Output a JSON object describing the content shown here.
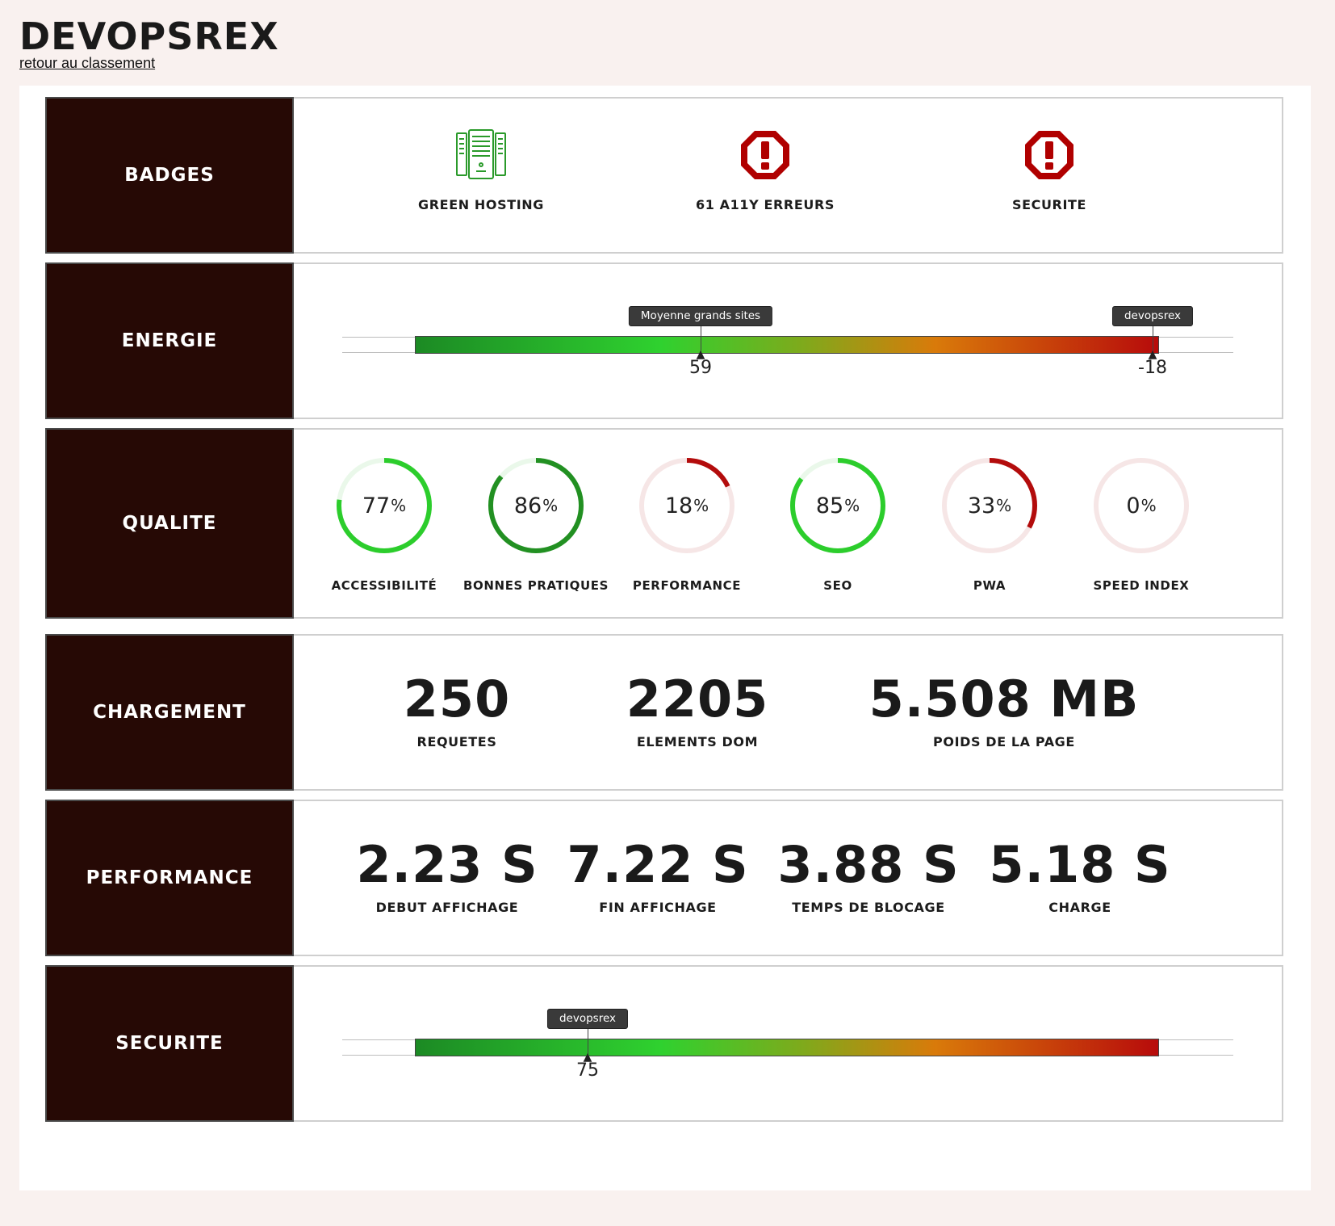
{
  "header": {
    "title": "DEVOPSREX",
    "back_link": "retour au classement"
  },
  "sections": {
    "badges": {
      "title": "BADGES",
      "items": [
        {
          "label": "GREEN HOSTING",
          "icon": "server-icon",
          "color": "#2a9a2a"
        },
        {
          "label": "61 A11Y ERREURS",
          "icon": "warning-octagon-icon",
          "color": "#b00000"
        },
        {
          "label": "SECURITE",
          "icon": "warning-octagon-icon",
          "color": "#b00000"
        }
      ]
    },
    "energie": {
      "title": "ENERGIE",
      "markers": [
        {
          "tag": "Moyenne grands sites",
          "value": "59"
        },
        {
          "tag": "devopsrex",
          "value": "-18"
        }
      ]
    },
    "qualite": {
      "title": "QUALITE",
      "gauges": [
        {
          "label": "ACCESSIBILITÉ",
          "value": "77",
          "color": "#2ccd2c",
          "track": "#eaf8ea"
        },
        {
          "label": "BONNES PRATIQUES",
          "value": "86",
          "color": "#229022",
          "track": "#eaf8ea"
        },
        {
          "label": "PERFORMANCE",
          "value": "18",
          "color": "#b30c0c",
          "track": "#f6e6e6"
        },
        {
          "label": "SEO",
          "value": "85",
          "color": "#2ccd2c",
          "track": "#eaf8ea"
        },
        {
          "label": "PWA",
          "value": "33",
          "color": "#b30c0c",
          "track": "#f6e6e6"
        },
        {
          "label": "SPEED INDEX",
          "value": "0",
          "color": "#b30c0c",
          "track": "#f6e6e6"
        }
      ],
      "pct_sign": "%"
    },
    "chargement": {
      "title": "CHARGEMENT",
      "stats": [
        {
          "value": "250",
          "label": "REQUETES"
        },
        {
          "value": "2205",
          "label": "ELEMENTS DOM"
        },
        {
          "value": "5.508 MB",
          "label": "POIDS DE LA PAGE"
        }
      ]
    },
    "performance": {
      "title": "PERFORMANCE",
      "stats": [
        {
          "value": "2.23 S",
          "label": "DEBUT AFFICHAGE"
        },
        {
          "value": "7.22 S",
          "label": "FIN AFFICHAGE"
        },
        {
          "value": "3.88 S",
          "label": "TEMPS DE BLOCAGE"
        },
        {
          "value": "5.18 S",
          "label": "CHARGE"
        }
      ]
    },
    "securite": {
      "title": "SECURITE",
      "markers": [
        {
          "tag": "devopsrex",
          "value": "75"
        }
      ]
    }
  }
}
